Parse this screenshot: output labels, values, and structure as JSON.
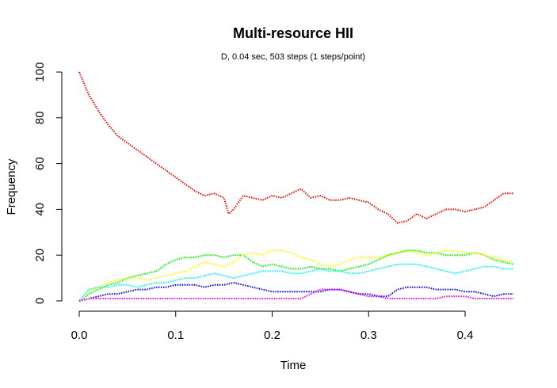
{
  "chart_data": {
    "type": "line",
    "title": "Multi-resource HII",
    "subtitle": "D, 0.04 sec, 503 steps (1 steps/point)",
    "xlabel": "Time",
    "ylabel": "Frequency",
    "xlim": [
      0,
      0.45
    ],
    "ylim": [
      0,
      100
    ],
    "xticks": [
      "0.0",
      "0.1",
      "0.2",
      "0.3",
      "0.4"
    ],
    "yticks": [
      "0",
      "20",
      "40",
      "60",
      "80",
      "100"
    ],
    "line_style": "dotted",
    "grid": false,
    "legend": "none",
    "series": [
      {
        "color": "#ff0000",
        "x": [
          0,
          0.01,
          0.02,
          0.03,
          0.04,
          0.05,
          0.06,
          0.07,
          0.08,
          0.09,
          0.1,
          0.11,
          0.12,
          0.13,
          0.14,
          0.15,
          0.155,
          0.16,
          0.17,
          0.18,
          0.19,
          0.2,
          0.21,
          0.22,
          0.23,
          0.24,
          0.25,
          0.26,
          0.27,
          0.28,
          0.29,
          0.3,
          0.31,
          0.32,
          0.33,
          0.34,
          0.35,
          0.36,
          0.37,
          0.38,
          0.39,
          0.4,
          0.41,
          0.42,
          0.43,
          0.44,
          0.45
        ],
        "y": [
          100,
          90,
          83,
          77,
          72,
          69,
          66,
          63,
          60,
          57,
          54,
          51,
          48,
          46,
          47,
          45,
          38,
          40,
          46,
          45,
          44,
          46,
          45,
          47,
          49,
          45,
          46,
          44,
          44,
          45,
          44,
          43,
          40,
          38,
          34,
          35,
          38,
          36,
          38,
          40,
          40,
          39,
          40,
          41,
          44,
          47,
          47
        ]
      },
      {
        "color": "#00ff00",
        "x": [
          0,
          0.01,
          0.02,
          0.03,
          0.04,
          0.05,
          0.06,
          0.07,
          0.08,
          0.09,
          0.1,
          0.11,
          0.12,
          0.13,
          0.14,
          0.15,
          0.16,
          0.17,
          0.18,
          0.19,
          0.2,
          0.21,
          0.22,
          0.23,
          0.24,
          0.25,
          0.26,
          0.27,
          0.28,
          0.29,
          0.3,
          0.31,
          0.32,
          0.33,
          0.34,
          0.35,
          0.36,
          0.37,
          0.38,
          0.39,
          0.4,
          0.41,
          0.42,
          0.43,
          0.44,
          0.45
        ],
        "y": [
          0,
          3,
          5,
          7,
          8,
          10,
          11,
          12,
          13,
          16,
          18,
          19,
          19,
          20,
          20,
          19,
          20,
          20,
          17,
          15,
          16,
          15,
          14,
          14,
          15,
          14,
          14,
          13,
          14,
          15,
          16,
          18,
          20,
          21,
          22,
          22,
          21,
          21,
          20,
          20,
          20,
          21,
          20,
          18,
          17,
          16
        ]
      },
      {
        "color": "#ffff00",
        "x": [
          0,
          0.01,
          0.02,
          0.03,
          0.04,
          0.05,
          0.06,
          0.07,
          0.08,
          0.09,
          0.1,
          0.11,
          0.12,
          0.13,
          0.14,
          0.15,
          0.16,
          0.17,
          0.18,
          0.19,
          0.2,
          0.21,
          0.22,
          0.23,
          0.24,
          0.25,
          0.26,
          0.27,
          0.28,
          0.29,
          0.3,
          0.31,
          0.32,
          0.33,
          0.34,
          0.35,
          0.36,
          0.37,
          0.38,
          0.39,
          0.4,
          0.41,
          0.42,
          0.43,
          0.44,
          0.45
        ],
        "y": [
          0,
          4,
          6,
          8,
          9,
          10,
          10,
          9,
          10,
          11,
          12,
          13,
          15,
          17,
          16,
          15,
          17,
          20,
          21,
          20,
          22,
          22,
          21,
          19,
          18,
          16,
          15,
          16,
          18,
          19,
          19,
          19,
          20,
          21,
          22,
          21,
          20,
          21,
          22,
          22,
          21,
          21,
          20,
          19,
          18,
          17
        ]
      },
      {
        "color": "#00ffff",
        "x": [
          0,
          0.01,
          0.02,
          0.03,
          0.04,
          0.05,
          0.06,
          0.07,
          0.08,
          0.09,
          0.1,
          0.11,
          0.12,
          0.13,
          0.14,
          0.15,
          0.16,
          0.17,
          0.18,
          0.19,
          0.2,
          0.21,
          0.22,
          0.23,
          0.24,
          0.25,
          0.26,
          0.27,
          0.28,
          0.29,
          0.3,
          0.31,
          0.32,
          0.33,
          0.34,
          0.35,
          0.36,
          0.37,
          0.38,
          0.39,
          0.4,
          0.41,
          0.42,
          0.43,
          0.44,
          0.45
        ],
        "y": [
          0,
          5,
          6,
          6,
          7,
          7,
          6,
          7,
          8,
          8,
          9,
          10,
          10,
          11,
          12,
          11,
          10,
          11,
          12,
          13,
          13,
          13,
          12,
          12,
          13,
          14,
          13,
          13,
          12,
          12,
          13,
          14,
          15,
          16,
          16,
          16,
          15,
          14,
          13,
          12,
          13,
          14,
          15,
          15,
          14,
          14
        ]
      },
      {
        "color": "#0000ff",
        "x": [
          0,
          0.01,
          0.02,
          0.03,
          0.04,
          0.05,
          0.06,
          0.07,
          0.08,
          0.09,
          0.1,
          0.11,
          0.12,
          0.13,
          0.14,
          0.15,
          0.16,
          0.17,
          0.18,
          0.19,
          0.2,
          0.21,
          0.22,
          0.23,
          0.24,
          0.25,
          0.26,
          0.27,
          0.28,
          0.29,
          0.3,
          0.31,
          0.32,
          0.33,
          0.34,
          0.35,
          0.36,
          0.37,
          0.38,
          0.39,
          0.4,
          0.41,
          0.42,
          0.43,
          0.44,
          0.45
        ],
        "y": [
          0,
          1,
          2,
          3,
          3,
          4,
          5,
          5,
          6,
          6,
          7,
          7,
          7,
          6,
          7,
          7,
          8,
          7,
          6,
          5,
          4,
          4,
          4,
          4,
          4,
          4,
          5,
          5,
          4,
          3,
          3,
          2,
          2,
          5,
          6,
          6,
          6,
          5,
          5,
          5,
          4,
          4,
          3,
          2,
          3,
          3
        ]
      },
      {
        "color": "#ff00ff",
        "x": [
          0,
          0.01,
          0.02,
          0.03,
          0.04,
          0.05,
          0.06,
          0.07,
          0.08,
          0.09,
          0.1,
          0.11,
          0.12,
          0.13,
          0.14,
          0.15,
          0.16,
          0.17,
          0.18,
          0.19,
          0.2,
          0.21,
          0.22,
          0.23,
          0.24,
          0.25,
          0.26,
          0.27,
          0.28,
          0.29,
          0.3,
          0.31,
          0.32,
          0.33,
          0.34,
          0.35,
          0.36,
          0.37,
          0.38,
          0.39,
          0.4,
          0.41,
          0.42,
          0.43,
          0.44,
          0.45
        ],
        "y": [
          0,
          1,
          1,
          1,
          1,
          1,
          1,
          1,
          1,
          1,
          1,
          1,
          1,
          1,
          1,
          1,
          1,
          1,
          1,
          1,
          1,
          1,
          1,
          1,
          3,
          5,
          5,
          5,
          4,
          3,
          2,
          2,
          1,
          1,
          1,
          1,
          1,
          1,
          2,
          2,
          2,
          1,
          1,
          1,
          1,
          1
        ]
      }
    ]
  }
}
